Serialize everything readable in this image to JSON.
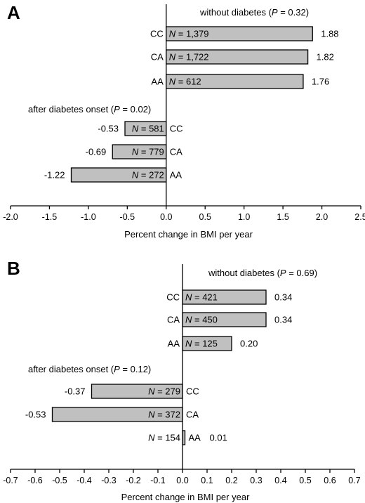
{
  "chart_data": [
    {
      "type": "bar",
      "orientation": "horizontal",
      "panel_label": "A",
      "xlabel": "Percent change in BMI per year",
      "xlim": [
        -2.0,
        2.5
      ],
      "xticks": [
        "-2.0",
        "-1.5",
        "-1.0",
        "-0.5",
        "0.0",
        "0.5",
        "1.0",
        "1.5",
        "2.0",
        "2.5"
      ],
      "groups": [
        {
          "title": "without diabetes (P = 0.32)",
          "title_parts": [
            "without diabetes (",
            "P",
            " = 0.32)"
          ],
          "bars": [
            {
              "genotype": "CC",
              "n_label": "= 1,379",
              "value": 1.88,
              "value_label": "1.88"
            },
            {
              "genotype": "CA",
              "n_label": "= 1,722",
              "value": 1.82,
              "value_label": "1.82"
            },
            {
              "genotype": "AA",
              "n_label": "= 612",
              "value": 1.76,
              "value_label": "1.76"
            }
          ]
        },
        {
          "title": "after diabetes onset (P = 0.02)",
          "title_parts": [
            "after diabetes onset (",
            "P",
            " = 0.02)"
          ],
          "bars": [
            {
              "genotype": "CC",
              "n_label": "= 581",
              "value": -0.53,
              "value_label": "-0.53"
            },
            {
              "genotype": "CA",
              "n_label": "= 779",
              "value": -0.69,
              "value_label": "-0.69"
            },
            {
              "genotype": "AA",
              "n_label": "= 272",
              "value": -1.22,
              "value_label": "-1.22"
            }
          ]
        }
      ]
    },
    {
      "type": "bar",
      "orientation": "horizontal",
      "panel_label": "B",
      "xlabel": "Percent change in BMI per year",
      "xlim": [
        -0.7,
        0.7
      ],
      "xticks": [
        "-0.7",
        "-0.6",
        "-0.5",
        "-0.4",
        "-0.3",
        "-0.2",
        "-0.1",
        "0.0",
        "0.1",
        "0.2",
        "0.3",
        "0.4",
        "0.5",
        "0.6",
        "0.7"
      ],
      "groups": [
        {
          "title": "without diabetes (P = 0.69)",
          "title_parts": [
            "without diabetes (",
            "P",
            " = 0.69)"
          ],
          "bars": [
            {
              "genotype": "CC",
              "n_label": "= 421",
              "value": 0.34,
              "value_label": "0.34"
            },
            {
              "genotype": "CA",
              "n_label": "= 450",
              "value": 0.34,
              "value_label": "0.34"
            },
            {
              "genotype": "AA",
              "n_label": "= 125",
              "value": 0.2,
              "value_label": "0.20"
            }
          ]
        },
        {
          "title": "after diabetes onset (P = 0.12)",
          "title_parts": [
            "after diabetes onset (",
            "P",
            " = 0.12)"
          ],
          "bars": [
            {
              "genotype": "CC",
              "n_label": "= 279",
              "value": -0.37,
              "value_label": "-0.37"
            },
            {
              "genotype": "CA",
              "n_label": "= 372",
              "value": -0.53,
              "value_label": "-0.53"
            },
            {
              "genotype": "AA",
              "n_label": "= 154",
              "value": 0.01,
              "value_label": "0.01"
            }
          ]
        }
      ]
    }
  ]
}
